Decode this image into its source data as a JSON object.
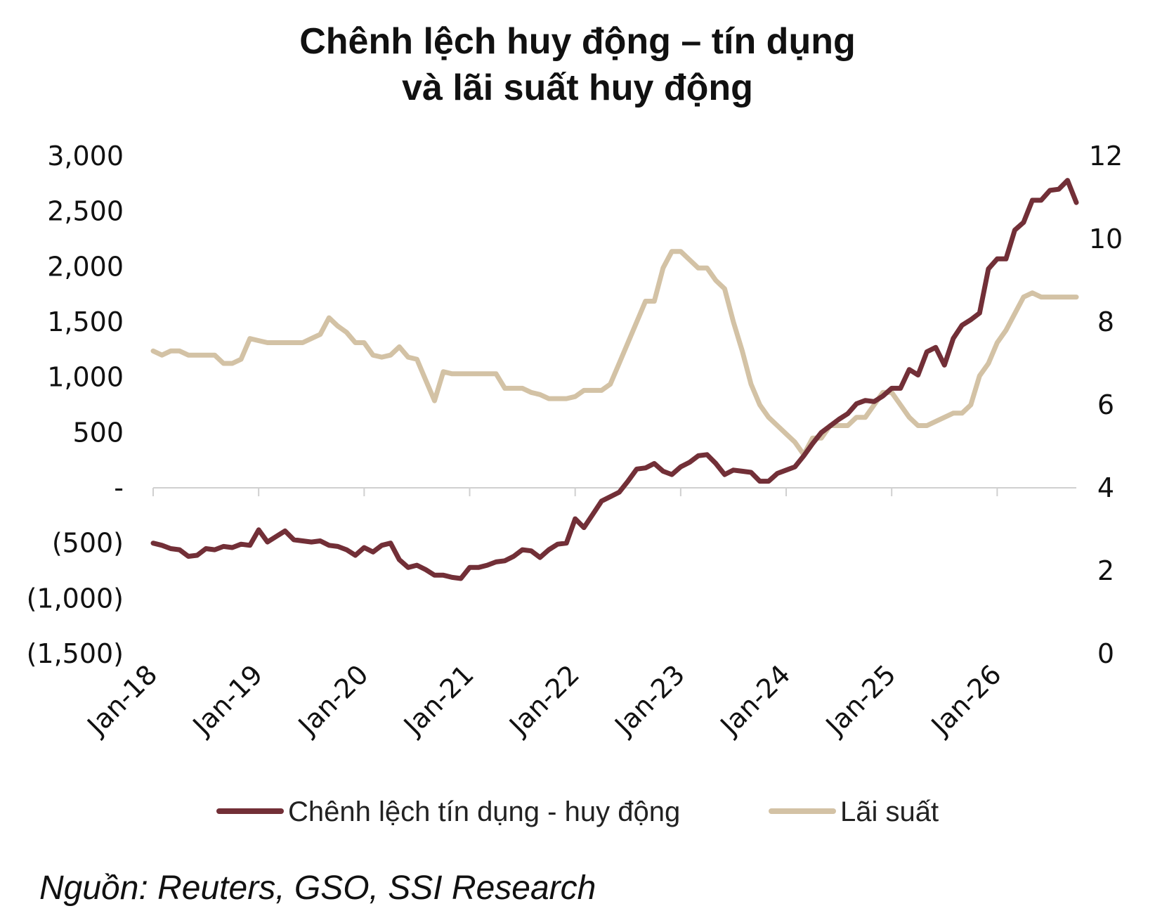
{
  "chart_data": {
    "type": "line",
    "title_line1": "Chênh lệch huy động – tín dụng",
    "title_line2": "và lãi suất huy động",
    "x_start": "2018-01",
    "x_end": "2026-07",
    "x_ticks": [
      "Jan-18",
      "Jan-19",
      "Jan-20",
      "Jan-21",
      "Jan-22",
      "Jan-23",
      "Jan-24",
      "Jan-25",
      "Jan-26"
    ],
    "y_left": {
      "ticks": [
        "3,000",
        "2,500",
        "2,000",
        "1,500",
        "1,000",
        "500",
        "-",
        "(500)",
        "(1,000)",
        "(1,500)"
      ],
      "ylim": [
        -1500,
        3000
      ]
    },
    "y_right": {
      "ticks": [
        "12",
        "10",
        "8",
        "6",
        "4",
        "2",
        "0"
      ],
      "ylim": [
        0,
        12
      ]
    },
    "series": [
      {
        "name": "Chênh lệch tín dụng - huy động",
        "color": "#722f37",
        "axis": "left",
        "values": [
          -500,
          -520,
          -550,
          -560,
          -620,
          -610,
          -550,
          -560,
          -530,
          -540,
          -510,
          -520,
          -380,
          -490,
          -440,
          -390,
          -470,
          -480,
          -490,
          -480,
          -520,
          -530,
          -560,
          -610,
          -540,
          -580,
          -520,
          -500,
          -650,
          -720,
          -700,
          -740,
          -790,
          -790,
          -810,
          -820,
          -720,
          -720,
          -700,
          -670,
          -660,
          -620,
          -560,
          -570,
          -630,
          -560,
          -510,
          -500,
          -280,
          -360,
          -240,
          -120,
          -80,
          -40,
          60,
          170,
          180,
          220,
          150,
          120,
          190,
          230,
          290,
          300,
          220,
          120,
          160,
          150,
          140,
          60,
          60,
          130,
          160,
          190,
          290,
          400,
          500,
          560,
          620,
          670,
          760,
          790,
          780,
          830,
          900,
          900,
          1070,
          1020,
          1230,
          1270,
          1110,
          1350,
          1470,
          1520,
          1580,
          1980,
          2070,
          2070,
          2330,
          2400,
          2600,
          2600,
          2690,
          2700,
          2780,
          2580
        ]
      },
      {
        "name": "Lãi suất",
        "color": "#d3c2a5",
        "axis": "right",
        "values": [
          7.3,
          7.2,
          7.3,
          7.3,
          7.2,
          7.2,
          7.2,
          7.2,
          7.0,
          7.0,
          7.1,
          7.6,
          7.55,
          7.5,
          7.5,
          7.5,
          7.5,
          7.5,
          7.6,
          7.7,
          8.1,
          7.9,
          7.75,
          7.5,
          7.5,
          7.2,
          7.15,
          7.2,
          7.4,
          7.15,
          7.1,
          6.6,
          6.1,
          6.8,
          6.75,
          6.75,
          6.75,
          6.75,
          6.75,
          6.75,
          6.4,
          6.4,
          6.4,
          6.3,
          6.25,
          6.15,
          6.15,
          6.15,
          6.2,
          6.35,
          6.35,
          6.35,
          6.5,
          7.0,
          7.5,
          8.0,
          8.5,
          8.5,
          9.3,
          9.7,
          9.7,
          9.5,
          9.3,
          9.3,
          9.0,
          8.8,
          8.0,
          7.3,
          6.5,
          6.0,
          5.7,
          5.5,
          5.3,
          5.1,
          4.8,
          5.2,
          5.2,
          5.5,
          5.5,
          5.5,
          5.7,
          5.7,
          6.0,
          6.3,
          6.3,
          6.0,
          5.7,
          5.5,
          5.5,
          5.6,
          5.7,
          5.8,
          5.8,
          6.0,
          6.7,
          7.0,
          7.5,
          7.8,
          8.2,
          8.6,
          8.7,
          8.6,
          8.6,
          8.6,
          8.6,
          8.6
        ]
      }
    ],
    "legend_position": "bottom",
    "source": "Nguồn: Reuters, GSO, SSI Research"
  }
}
